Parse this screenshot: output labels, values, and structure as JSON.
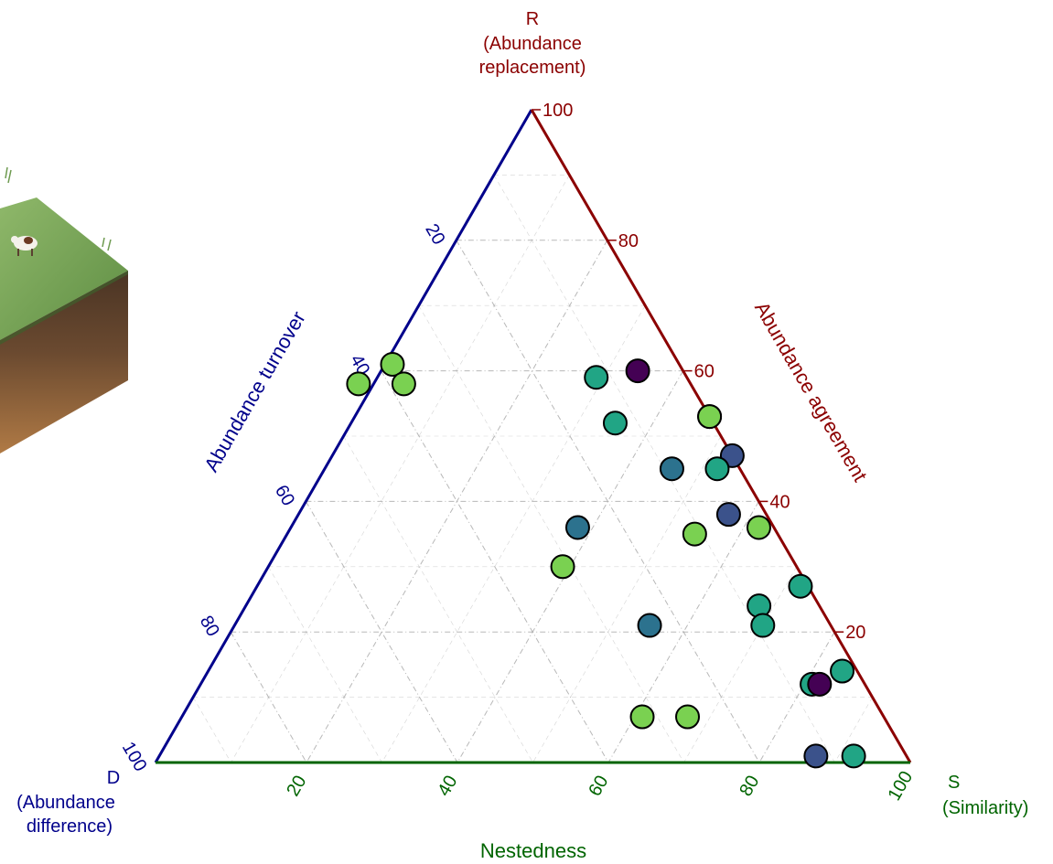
{
  "colors": {
    "r_axis": "#8b0000",
    "d_axis": "#00008b",
    "s_axis": "#006400",
    "grid": "#b0b0b0",
    "point_outline": "#000000"
  },
  "illustration": {
    "name": "cow-grassland-soil-block"
  },
  "chart_data": {
    "type": "scatter",
    "subtype": "ternary",
    "vertices": {
      "top": {
        "letter": "R",
        "caption_lines": [
          "(Abundance",
          "replacement)"
        ]
      },
      "left": {
        "letter": "D",
        "caption_lines": [
          "(Abundance",
          "difference)"
        ]
      },
      "right": {
        "letter": "S",
        "caption_lines": [
          "(Similarity)"
        ]
      }
    },
    "axes": {
      "left_edge": {
        "title": "Abundance turnover",
        "ticks": [
          "20",
          "40",
          "60",
          "80",
          "100"
        ]
      },
      "right_edge": {
        "title": "Abundance agreement",
        "ticks": [
          "20",
          "40",
          "60",
          "80",
          "100"
        ]
      },
      "bottom_edge": {
        "title": "Nestedness",
        "ticks": [
          "20",
          "40",
          "60",
          "80",
          "100"
        ]
      }
    },
    "components": [
      "R",
      "D",
      "S"
    ],
    "grid_step": 10,
    "series_colors": {
      "c1": "#440154",
      "c2": "#3b528b",
      "c3": "#2c728e",
      "c4": "#21a585",
      "c5": "#7ad151"
    },
    "points": [
      {
        "R": 61,
        "D": 38,
        "S": 1,
        "c": "c5"
      },
      {
        "R": 59,
        "D": 12,
        "S": 29,
        "c": "c4"
      },
      {
        "R": 52,
        "D": 13,
        "S": 35,
        "c": "c4"
      },
      {
        "R": 60,
        "D": 6,
        "S": 34,
        "c": "c1"
      },
      {
        "R": 58,
        "D": 44,
        "S": -2,
        "c": "c5"
      },
      {
        "R": 58,
        "D": 38,
        "S": 4,
        "c": "c5"
      },
      {
        "R": 53,
        "D": 0,
        "S": 47,
        "c": "c1"
      },
      {
        "R": 53,
        "D": 0,
        "S": 47,
        "c": "c5"
      },
      {
        "R": 47,
        "D": 0,
        "S": 53,
        "c": "c2"
      },
      {
        "R": 45,
        "D": 3,
        "S": 52,
        "c": "c4"
      },
      {
        "R": 45,
        "D": 9,
        "S": 46,
        "c": "c3"
      },
      {
        "R": 38,
        "D": 5,
        "S": 57,
        "c": "c2"
      },
      {
        "R": 36,
        "D": 26,
        "S": 38,
        "c": "c3"
      },
      {
        "R": 35,
        "D": 11,
        "S": 54,
        "c": "c5"
      },
      {
        "R": 36,
        "D": 2,
        "S": 62,
        "c": "c5"
      },
      {
        "R": 30,
        "D": 31,
        "S": 39,
        "c": "c5"
      },
      {
        "R": 27,
        "D": 1,
        "S": 72,
        "c": "c4"
      },
      {
        "R": 24,
        "D": 8,
        "S": 68,
        "c": "c4"
      },
      {
        "R": 21,
        "D": 9,
        "S": 70,
        "c": "c4"
      },
      {
        "R": 21,
        "D": 24,
        "S": 55,
        "c": "c3"
      },
      {
        "R": 14,
        "D": 2,
        "S": 84,
        "c": "c4"
      },
      {
        "R": 12,
        "D": 7,
        "S": 81,
        "c": "c4"
      },
      {
        "R": 12,
        "D": 6,
        "S": 82,
        "c": "c1"
      },
      {
        "R": 7,
        "D": 32,
        "S": 61,
        "c": "c5"
      },
      {
        "R": 7,
        "D": 26,
        "S": 67,
        "c": "c5"
      },
      {
        "R": 1,
        "D": 12,
        "S": 87,
        "c": "c2"
      },
      {
        "R": 1,
        "D": 7,
        "S": 92,
        "c": "c4"
      }
    ]
  }
}
